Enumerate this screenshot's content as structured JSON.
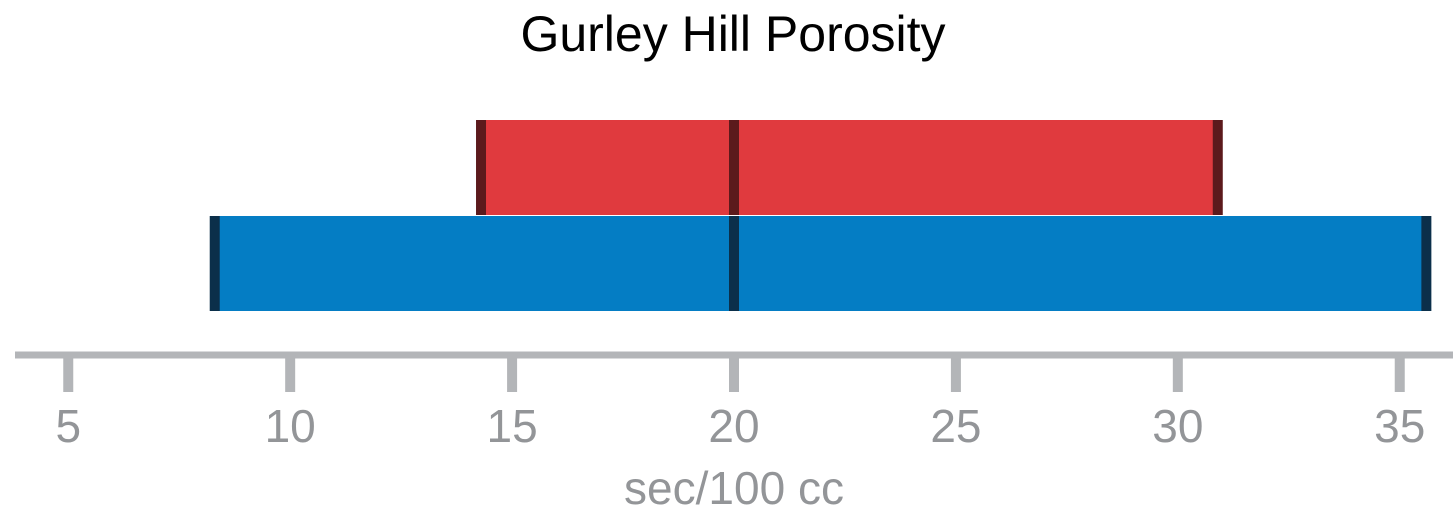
{
  "chart_data": {
    "type": "range",
    "title": "Gurley Hill Porosity",
    "x_label": "sec/100 cc",
    "series": [
      {
        "color": "#e03a3e",
        "marker_color": "#5c1a1c",
        "values": [
          14.3,
          20,
          30.9
        ]
      },
      {
        "color": "#047dc4",
        "marker_color": "#0b2f4a",
        "values": [
          8.3,
          20,
          35.6
        ]
      }
    ],
    "xlim": [
      3.8,
      36.2
    ],
    "xticks": [
      5,
      10,
      15,
      20,
      25,
      30,
      35
    ],
    "axis_color": "#b3b5b8"
  }
}
